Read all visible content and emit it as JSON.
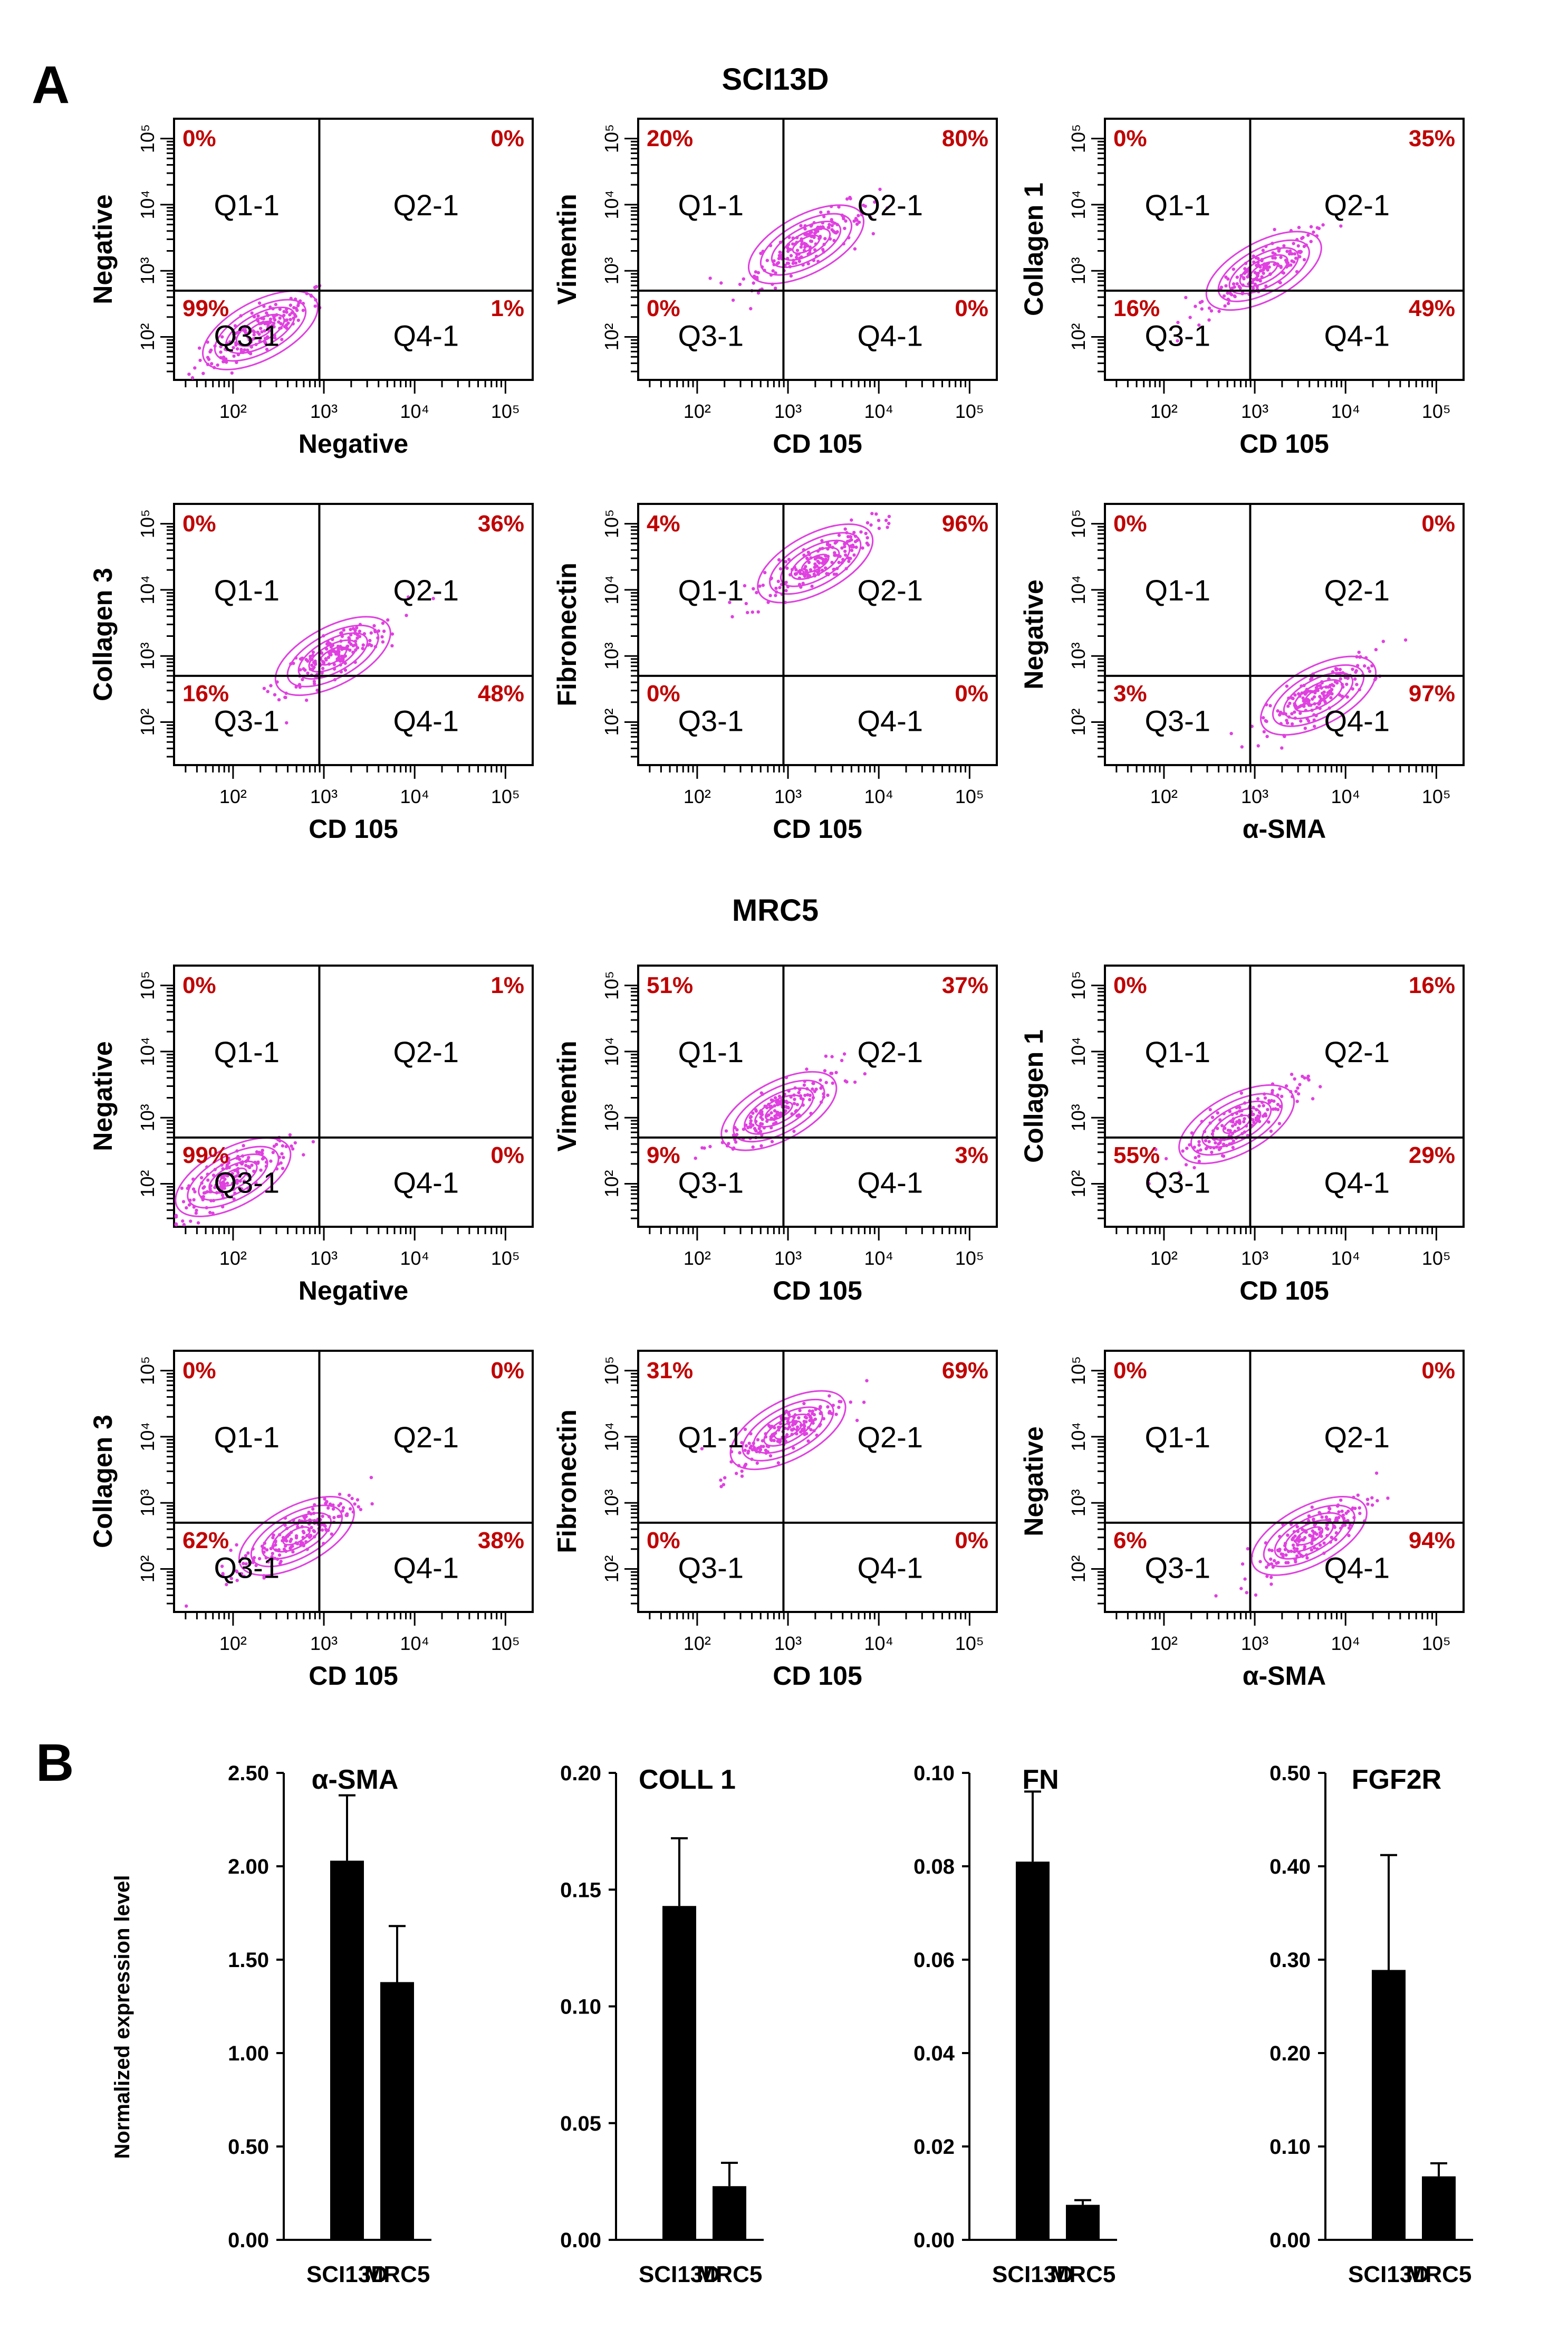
{
  "panel_labels": {
    "a": "A",
    "b": "B"
  },
  "colors": {
    "events": "#e040e0",
    "pct": "#c00000",
    "bars": "#000000",
    "axes": "#000000"
  },
  "flow": {
    "groups": [
      "SCI13D",
      "MRC5"
    ],
    "x_ticks": [
      "10²",
      "10³",
      "10⁴",
      "10⁵"
    ],
    "y_ticks": [
      "10²",
      "10³",
      "10⁴",
      "10⁵"
    ],
    "plots": [
      {
        "group": "SCI13D",
        "x_label": "Negative",
        "y_label": "Negative",
        "quadrants": {
          "q1": {
            "name": "Q1-1",
            "pct": "0%"
          },
          "q2": {
            "name": "Q2-1",
            "pct": "0%"
          },
          "q3": {
            "name": "Q3-1",
            "pct": "99%"
          },
          "q4": {
            "name": "Q4-1",
            "pct": "1%"
          }
        },
        "population_log_center": [
          2.3,
          2.1
        ]
      },
      {
        "group": "SCI13D",
        "x_label": "CD 105",
        "y_label": "Vimentin",
        "quadrants": {
          "q1": {
            "name": "Q1-1",
            "pct": "20%"
          },
          "q2": {
            "name": "Q2-1",
            "pct": "80%"
          },
          "q3": {
            "name": "Q3-1",
            "pct": "0%"
          },
          "q4": {
            "name": "Q4-1",
            "pct": "0%"
          }
        },
        "population_log_center": [
          3.2,
          3.4
        ]
      },
      {
        "group": "SCI13D",
        "x_label": "CD 105",
        "y_label": "Collagen 1",
        "quadrants": {
          "q1": {
            "name": "Q1-1",
            "pct": "0%"
          },
          "q2": {
            "name": "Q2-1",
            "pct": "35%"
          },
          "q3": {
            "name": "Q3-1",
            "pct": "16%"
          },
          "q4": {
            "name": "Q4-1",
            "pct": "49%"
          }
        },
        "population_log_center": [
          3.1,
          3.0
        ]
      },
      {
        "group": "SCI13D",
        "x_label": "CD 105",
        "y_label": "Collagen 3",
        "quadrants": {
          "q1": {
            "name": "Q1-1",
            "pct": "0%"
          },
          "q2": {
            "name": "Q2-1",
            "pct": "36%"
          },
          "q3": {
            "name": "Q3-1",
            "pct": "16%"
          },
          "q4": {
            "name": "Q4-1",
            "pct": "48%"
          }
        },
        "population_log_center": [
          3.1,
          3.0
        ]
      },
      {
        "group": "SCI13D",
        "x_label": "CD 105",
        "y_label": "Fibronectin",
        "quadrants": {
          "q1": {
            "name": "Q1-1",
            "pct": "4%"
          },
          "q2": {
            "name": "Q2-1",
            "pct": "96%"
          },
          "q3": {
            "name": "Q3-1",
            "pct": "0%"
          },
          "q4": {
            "name": "Q4-1",
            "pct": "0%"
          }
        },
        "population_log_center": [
          3.3,
          4.4
        ]
      },
      {
        "group": "SCI13D",
        "x_label": "α-SMA",
        "y_label": "Negative",
        "quadrants": {
          "q1": {
            "name": "Q1-1",
            "pct": "0%"
          },
          "q2": {
            "name": "Q2-1",
            "pct": "0%"
          },
          "q3": {
            "name": "Q3-1",
            "pct": "3%"
          },
          "q4": {
            "name": "Q4-1",
            "pct": "97%"
          }
        },
        "population_log_center": [
          3.7,
          2.4
        ]
      },
      {
        "group": "MRC5",
        "x_label": "Negative",
        "y_label": "Negative",
        "quadrants": {
          "q1": {
            "name": "Q1-1",
            "pct": "0%"
          },
          "q2": {
            "name": "Q2-1",
            "pct": "1%"
          },
          "q3": {
            "name": "Q3-1",
            "pct": "99%"
          },
          "q4": {
            "name": "Q4-1",
            "pct": "0%"
          }
        },
        "population_log_center": [
          2.0,
          2.1
        ]
      },
      {
        "group": "MRC5",
        "x_label": "CD 105",
        "y_label": "Vimentin",
        "quadrants": {
          "q1": {
            "name": "Q1-1",
            "pct": "51%"
          },
          "q2": {
            "name": "Q2-1",
            "pct": "37%"
          },
          "q3": {
            "name": "Q3-1",
            "pct": "9%"
          },
          "q4": {
            "name": "Q4-1",
            "pct": "3%"
          }
        },
        "population_log_center": [
          2.9,
          3.1
        ]
      },
      {
        "group": "MRC5",
        "x_label": "CD 105",
        "y_label": "Collagen 1",
        "quadrants": {
          "q1": {
            "name": "Q1-1",
            "pct": "0%"
          },
          "q2": {
            "name": "Q2-1",
            "pct": "16%"
          },
          "q3": {
            "name": "Q3-1",
            "pct": "55%"
          },
          "q4": {
            "name": "Q4-1",
            "pct": "29%"
          }
        },
        "population_log_center": [
          2.8,
          2.9
        ]
      },
      {
        "group": "MRC5",
        "x_label": "CD 105",
        "y_label": "Collagen 3",
        "quadrants": {
          "q1": {
            "name": "Q1-1",
            "pct": "0%"
          },
          "q2": {
            "name": "Q2-1",
            "pct": "0%"
          },
          "q3": {
            "name": "Q3-1",
            "pct": "62%"
          },
          "q4": {
            "name": "Q4-1",
            "pct": "38%"
          }
        },
        "population_log_center": [
          2.7,
          2.5
        ]
      },
      {
        "group": "MRC5",
        "x_label": "CD 105",
        "y_label": "Fibronectin",
        "quadrants": {
          "q1": {
            "name": "Q1-1",
            "pct": "31%"
          },
          "q2": {
            "name": "Q2-1",
            "pct": "69%"
          },
          "q3": {
            "name": "Q3-1",
            "pct": "0%"
          },
          "q4": {
            "name": "Q4-1",
            "pct": "0%"
          }
        },
        "population_log_center": [
          3.0,
          4.1
        ]
      },
      {
        "group": "MRC5",
        "x_label": "α-SMA",
        "y_label": "Negative",
        "quadrants": {
          "q1": {
            "name": "Q1-1",
            "pct": "0%"
          },
          "q2": {
            "name": "Q2-1",
            "pct": "0%"
          },
          "q3": {
            "name": "Q3-1",
            "pct": "6%"
          },
          "q4": {
            "name": "Q4-1",
            "pct": "94%"
          }
        },
        "population_log_center": [
          3.6,
          2.5
        ]
      }
    ]
  },
  "chart_data": [
    {
      "type": "bar",
      "title": "α-SMA",
      "categories": [
        "SCI13D",
        "MRC5"
      ],
      "values": [
        2.03,
        1.38
      ],
      "errors": [
        0.35,
        0.3
      ],
      "ylabel": "Normalized expression level",
      "ylim": [
        0,
        2.5
      ],
      "yticks": [
        "0.00",
        "0.50",
        "1.00",
        "1.50",
        "2.00",
        "2.50"
      ]
    },
    {
      "type": "bar",
      "title": "COLL 1",
      "categories": [
        "SCI13D",
        "MRC5"
      ],
      "values": [
        0.143,
        0.023
      ],
      "errors": [
        0.029,
        0.01
      ],
      "ylabel": "",
      "ylim": [
        0,
        0.2
      ],
      "yticks": [
        "0.00",
        "0.05",
        "0.10",
        "0.15",
        "0.20"
      ]
    },
    {
      "type": "bar",
      "title": "FN",
      "categories": [
        "SCI13D",
        "MRC5"
      ],
      "values": [
        0.081,
        0.0075
      ],
      "errors": [
        0.015,
        0.001
      ],
      "ylabel": "",
      "ylim": [
        0,
        0.1
      ],
      "yticks": [
        "0.00",
        "0.02",
        "0.04",
        "0.06",
        "0.08",
        "0.10"
      ]
    },
    {
      "type": "bar",
      "title": "FGF2R",
      "categories": [
        "SCI13D",
        "MRC5"
      ],
      "values": [
        0.289,
        0.068
      ],
      "errors": [
        0.123,
        0.014
      ],
      "ylabel": "",
      "ylim": [
        0,
        0.5
      ],
      "yticks": [
        "0.00",
        "0.10",
        "0.20",
        "0.30",
        "0.40",
        "0.50"
      ]
    }
  ]
}
